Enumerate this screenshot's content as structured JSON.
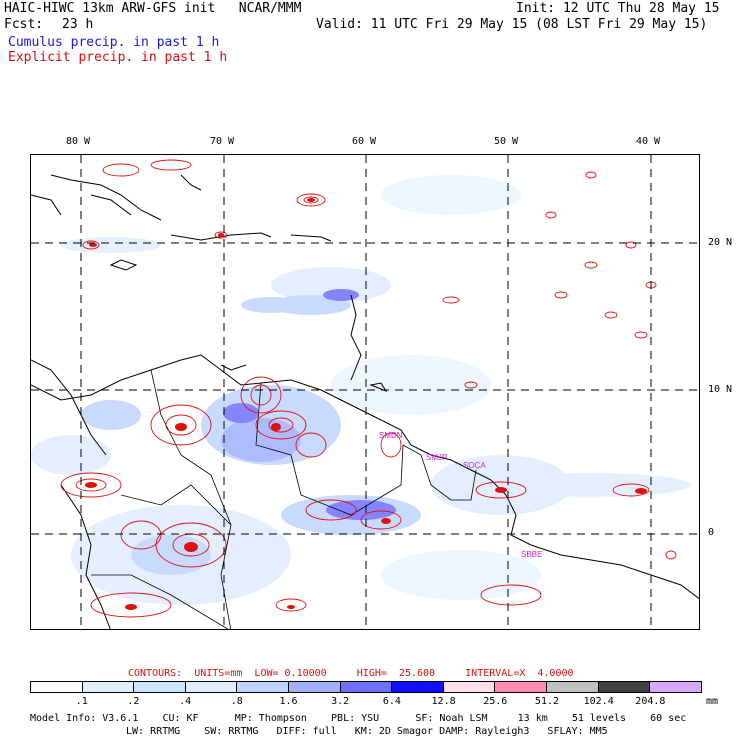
{
  "header": {
    "model": "HAIC-HIWC 13km ARW-GFS init   NCAR/MMM",
    "init": "Init: 12 UTC Thu 28 May 15",
    "fcst_label": "Fcst:",
    "fcst_value": "23 h",
    "valid": "Valid: 11 UTC Fri 29 May 15 (08 LST Fri 29 May 15)",
    "cumulus": "Cumulus precip. in past 1 h",
    "explicit": "Explicit precip. in past 1 h"
  },
  "map": {
    "lon_labels": [
      "80 W",
      "70 W",
      "60 W",
      "50 W",
      "40 W"
    ],
    "lat_labels": [
      "20 N",
      "10 N",
      "0"
    ],
    "station_labels": [
      "SMJP",
      "SOCA",
      "SBBE",
      "SMDN"
    ]
  },
  "legend": {
    "contours": "CONTOURS:  UNITS=mm  LOW= 0.10000     HIGH=  25.600     INTERVAL=X  4.0000",
    "unit": "mm",
    "ticks": [
      ".1",
      ".2",
      ".4",
      ".8",
      "1.6",
      "3.2",
      "6.4",
      "12.8",
      "25.6",
      "51.2",
      "102.4",
      "204.8"
    ],
    "colors": [
      "#ffffff",
      "#e0f0ff",
      "#c8e6ff",
      "#e0ecff",
      "#c0d4ff",
      "#a0b0ff",
      "#7070ff",
      "#1010ff",
      "#ffe0e8",
      "#ff8ab4",
      "#c0c0c0",
      "#404040",
      "#d8a8ff"
    ]
  },
  "model_info": {
    "line1": "Model Info: V3.6.1    CU: KF      MP: Thompson    PBL: YSU      SF: Noah LSM     13 km    51 levels    60 sec",
    "line2": "LW: RRTMG    SW: RRTMG   DIFF: full   KM: 2D Smagor DAMP: Rayleigh3   SFLAY: MM5"
  }
}
